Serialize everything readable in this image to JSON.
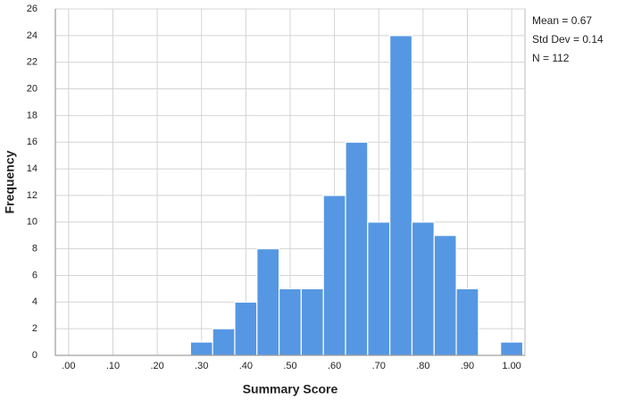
{
  "chart_data": {
    "type": "histogram",
    "x_label": "Summary Score",
    "y_label": "Frequency",
    "annotations": [
      "Mean = 0.67",
      "Std Dev = 0.14",
      "N = 112"
    ],
    "bins": [
      0.275,
      0.325,
      0.375,
      0.425,
      0.475,
      0.525,
      0.575,
      0.625,
      0.675,
      0.725,
      0.775,
      0.825,
      0.875,
      0.925,
      0.975,
      1.025
    ],
    "counts": [
      1,
      2,
      4,
      8,
      5,
      5,
      12,
      16,
      10,
      24,
      10,
      9,
      5,
      0,
      1
    ],
    "color": "#5697e3",
    "xlim": [
      -0.03,
      1.03
    ],
    "xticks": [
      {
        "value": 0,
        "label": ".00"
      },
      {
        "value": 0.1,
        "label": ".10"
      },
      {
        "value": 0.2,
        "label": ".20"
      },
      {
        "value": 0.3,
        "label": ".30"
      },
      {
        "value": 0.4,
        "label": ".40"
      },
      {
        "value": 0.5,
        "label": ".50"
      },
      {
        "value": 0.6,
        "label": ".60"
      },
      {
        "value": 0.7,
        "label": ".70"
      },
      {
        "value": 0.8,
        "label": ".80"
      },
      {
        "value": 0.9,
        "label": ".90"
      },
      {
        "value": 1.0,
        "label": "1.00"
      }
    ],
    "ylim": [
      0,
      26
    ],
    "yticks": [
      0,
      2,
      4,
      6,
      8,
      10,
      12,
      14,
      16,
      18,
      20,
      22,
      24,
      26
    ],
    "grid": true
  }
}
